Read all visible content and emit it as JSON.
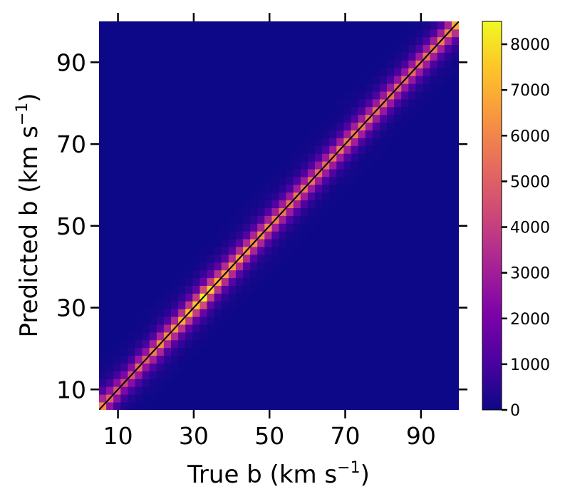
{
  "chart_data": {
    "type": "heatmap",
    "title": "",
    "xlabel": "True  b (km s",
    "ylabel": "Predicted b (km s",
    "unit_exponent": "−1",
    "unit_close": ")",
    "xlim": [
      5,
      100
    ],
    "ylim": [
      5,
      100
    ],
    "x_ticks": [
      "10",
      "30",
      "50",
      "70",
      "90"
    ],
    "y_ticks": [
      "10",
      "30",
      "50",
      "70",
      "90"
    ],
    "x_tick_values": [
      10,
      30,
      50,
      70,
      90
    ],
    "y_tick_values": [
      10,
      30,
      50,
      70,
      90
    ],
    "bins": 50,
    "colormap": "plasma",
    "colorbar": {
      "range": [
        0,
        8500
      ],
      "ticks": [
        "0",
        "1000",
        "2000",
        "3000",
        "4000",
        "5000",
        "6000",
        "7000",
        "8000"
      ],
      "tick_values": [
        0,
        1000,
        2000,
        3000,
        4000,
        5000,
        6000,
        7000,
        8000
      ]
    },
    "diagonal_counts": [
      6200,
      5000,
      4700,
      4200,
      4600,
      5300,
      5000,
      5800,
      6200,
      6100,
      6400,
      6900,
      7300,
      7500,
      8400,
      7600,
      7000,
      6600,
      6500,
      6600,
      6400,
      6200,
      6100,
      6000,
      5800,
      5600,
      5500,
      5700,
      5600,
      5500,
      5400,
      5400,
      5500,
      5600,
      5700,
      5800,
      5600,
      5600,
      5400,
      5300,
      5300,
      5200,
      5200,
      5300,
      5400,
      5500,
      5600,
      5800,
      6000,
      6900
    ],
    "reference_line": "y = x",
    "grid": false
  }
}
